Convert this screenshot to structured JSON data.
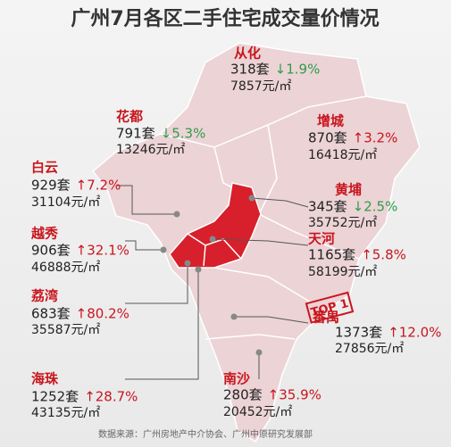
{
  "title": "广州7月各区二手住宅成交量价情况",
  "districts": [
    {
      "name": "从化",
      "volume": "318套",
      "change": "↓1.9%",
      "price": "7857元/㎡"
    },
    {
      "name": "花都",
      "volume": "791套",
      "change": "↓5.3%",
      "price": "13246元/㎡"
    },
    {
      "name": "增城",
      "volume": "870套",
      "change": "↑3.2%",
      "price": "16418元/㎡"
    },
    {
      "name": "白云",
      "volume": "929套",
      "change": "↑7.2%",
      "price": "31104元/㎡"
    },
    {
      "name": "黄埔",
      "volume": "345套",
      "change": "↓2.5%",
      "price": "35752元/㎡"
    },
    {
      "name": "越秀",
      "volume": "906套",
      "change": "↑32.1%",
      "price": "46888元/㎡"
    },
    {
      "name": "天河",
      "volume": "1165套",
      "change": "↑5.8%",
      "price": "58199元/㎡"
    },
    {
      "name": "荔湾",
      "volume": "683套",
      "change": "↑80.2%",
      "price": "35587元/㎡"
    },
    {
      "name": "番禺",
      "volume": "1373套",
      "change": "↑12.0%",
      "price": "27856元/㎡"
    },
    {
      "name": "海珠",
      "volume": "1252套",
      "change": "↑28.7%",
      "price": "43135元/㎡"
    },
    {
      "name": "南沙",
      "volume": "280套",
      "change": "↑35.9%",
      "price": "20452元/㎡"
    }
  ],
  "stamp": "TOP 1",
  "source": "数据来源：广州房地产中介协会、广州中原研究发展部"
}
